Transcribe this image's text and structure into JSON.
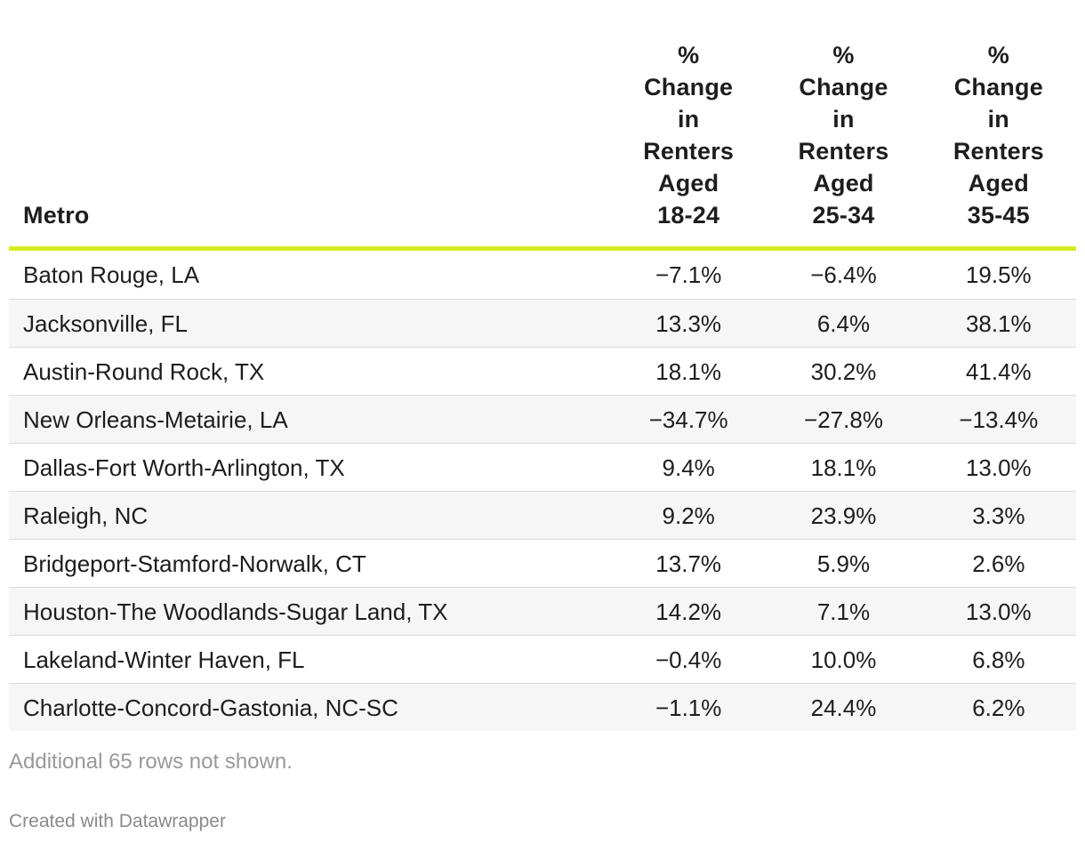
{
  "chart_data": {
    "type": "table",
    "columns": [
      "Metro",
      "% Change in Renters Aged 18-24",
      "% Change in Renters Aged 25-34",
      "% Change in Renters Aged 35-45"
    ],
    "rows": [
      [
        "Baton Rouge, LA",
        "−7.1%",
        "−6.4%",
        "19.5%"
      ],
      [
        "Jacksonville, FL",
        "13.3%",
        "6.4%",
        "38.1%"
      ],
      [
        "Austin-Round Rock, TX",
        "18.1%",
        "30.2%",
        "41.4%"
      ],
      [
        "New Orleans-Metairie, LA",
        "−34.7%",
        "−27.8%",
        "−13.4%"
      ],
      [
        "Dallas-Fort Worth-Arlington, TX",
        "9.4%",
        "18.1%",
        "13.0%"
      ],
      [
        "Raleigh, NC",
        "9.2%",
        "23.9%",
        "3.3%"
      ],
      [
        "Bridgeport-Stamford-Norwalk, CT",
        "13.7%",
        "5.9%",
        "2.6%"
      ],
      [
        "Houston-The Woodlands-Sugar Land, TX",
        "14.2%",
        "7.1%",
        "13.0%"
      ],
      [
        "Lakeland-Winter Haven, FL",
        "−0.4%",
        "10.0%",
        "6.8%"
      ],
      [
        "Charlotte-Concord-Gastonia, NC-SC",
        "−1.1%",
        "24.4%",
        "6.2%"
      ]
    ],
    "header_rule_color": "#d7ec1f",
    "stripe_color": "#f6f6f6"
  },
  "footer": {
    "note": "Additional 65 rows not shown.",
    "credit": "Created with Datawrapper"
  }
}
